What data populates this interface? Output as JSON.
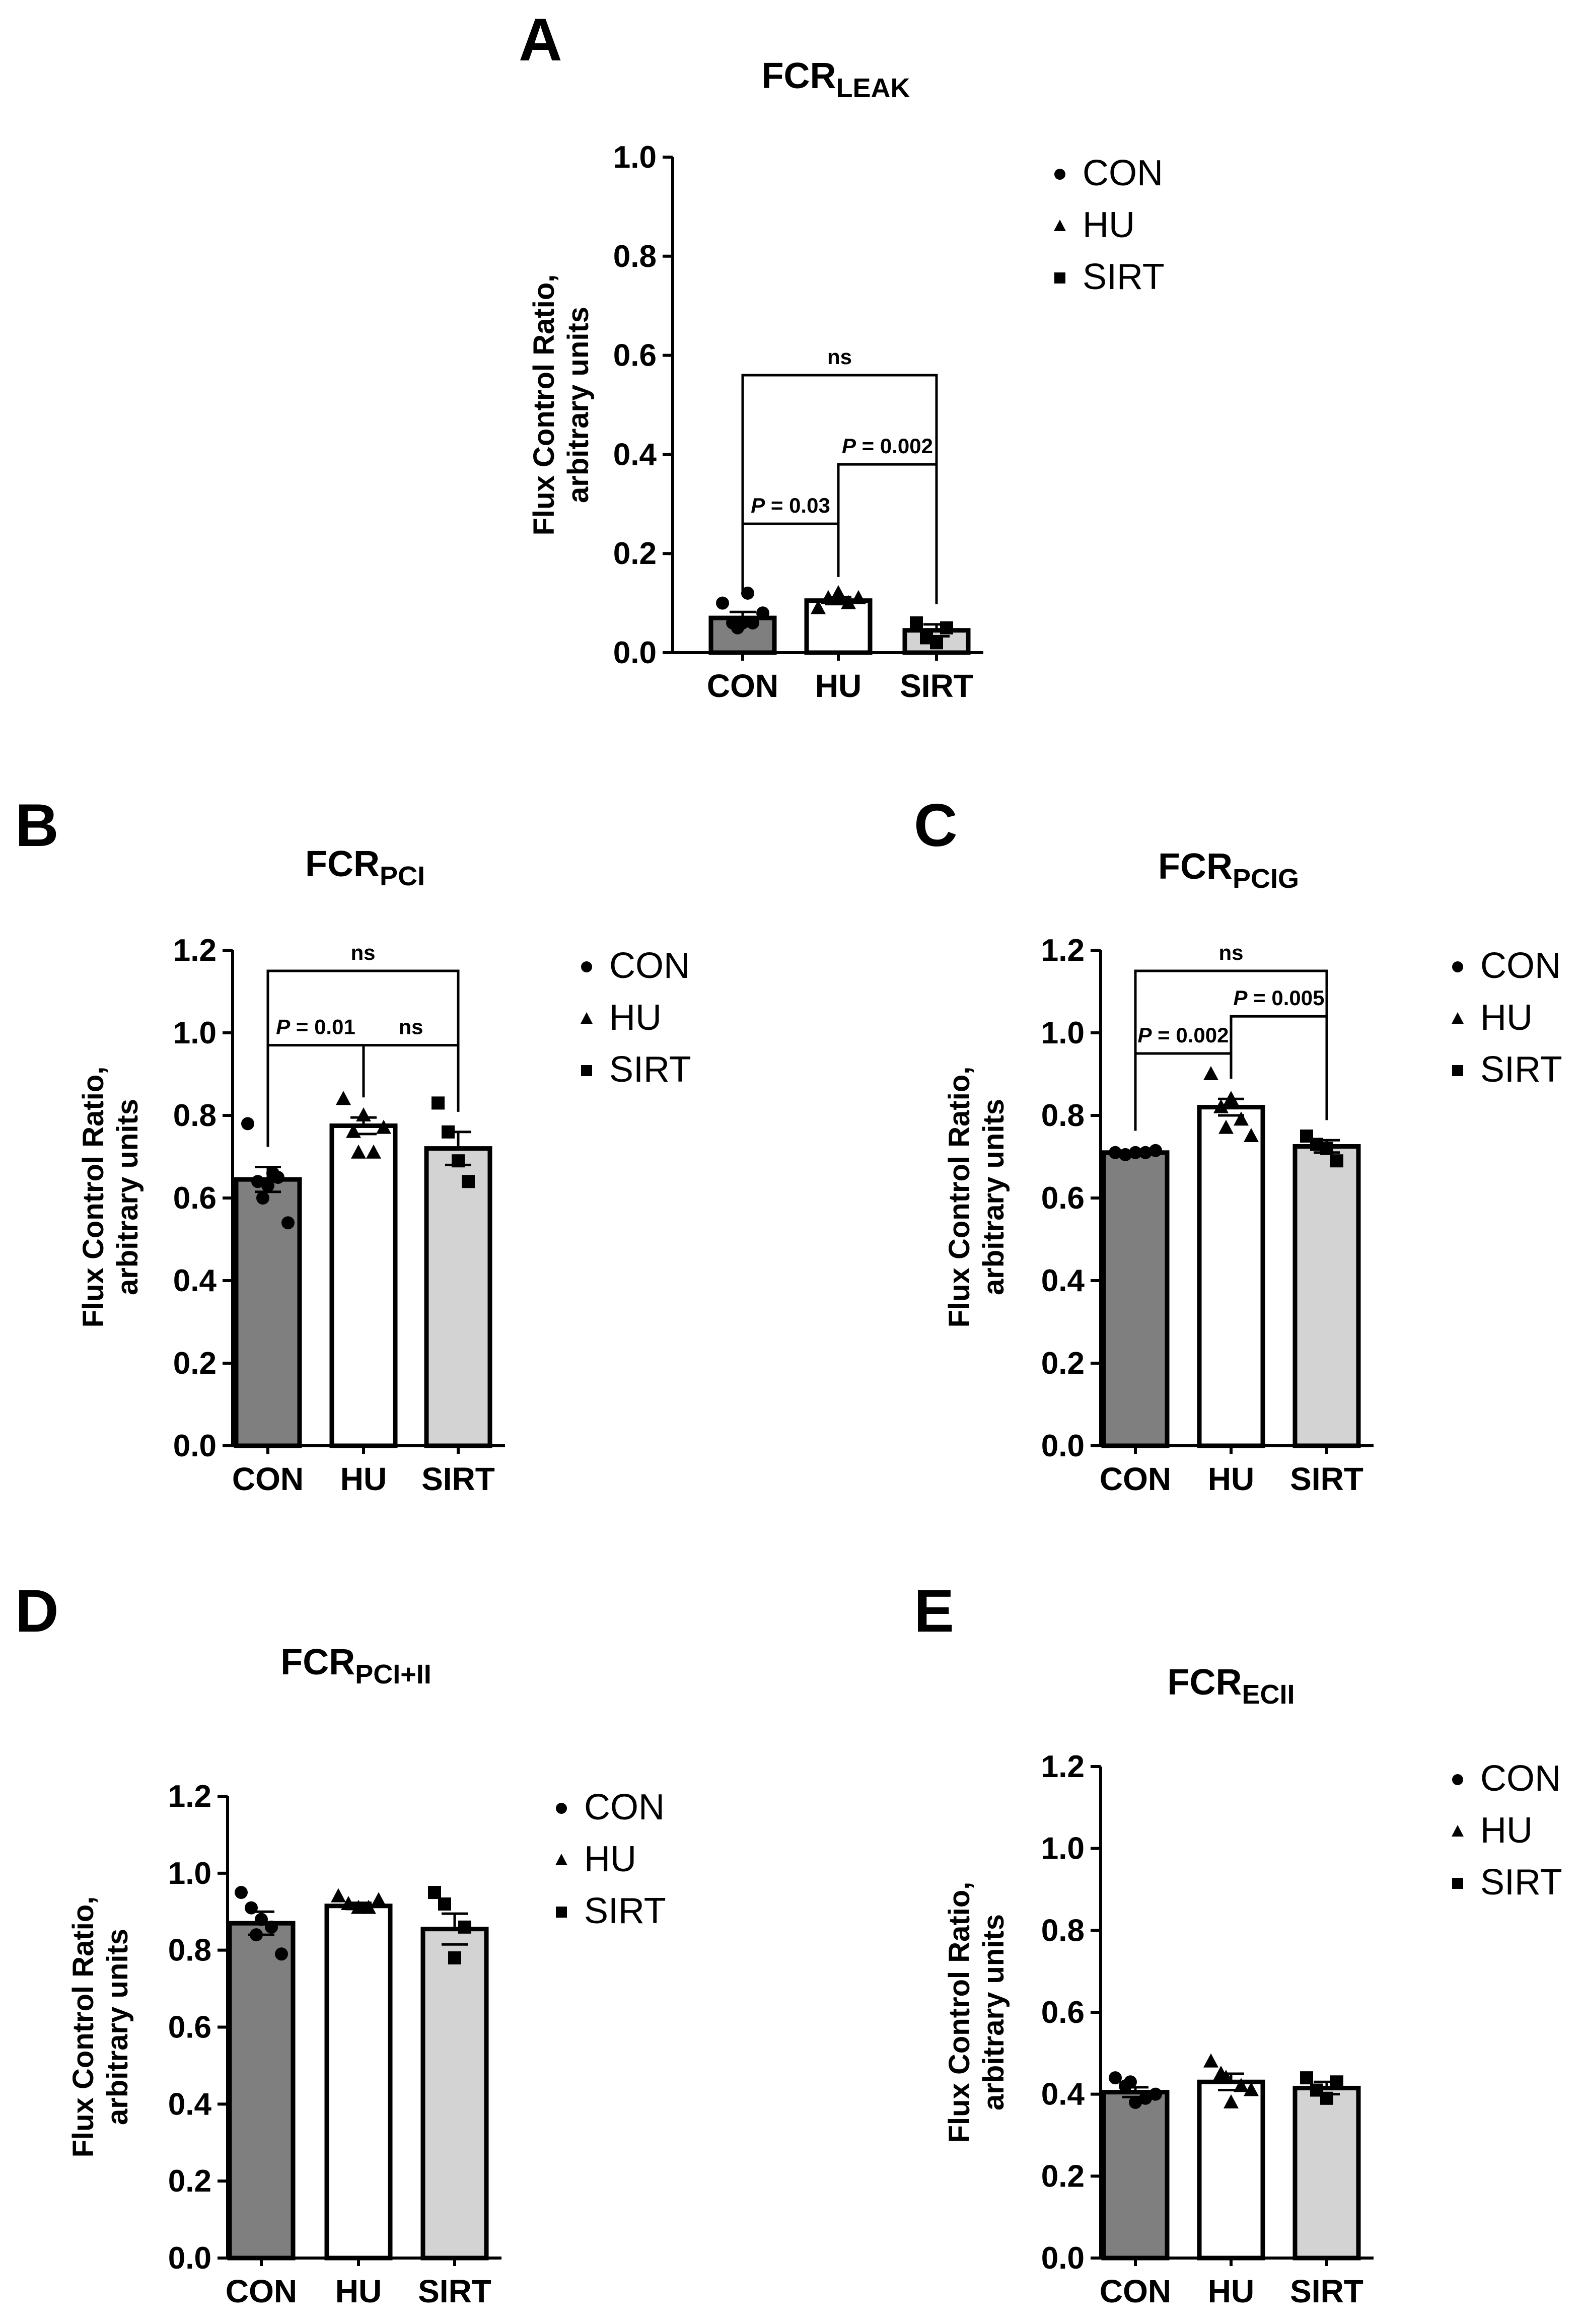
{
  "chart_data": [
    {
      "type": "bar",
      "panel": "A",
      "title": "FCR",
      "title_sub": "LEAK",
      "ylabel": [
        "Flux Control Ratio,",
        "arbitrary units"
      ],
      "categories": [
        "CON",
        "HU",
        "SIRT"
      ],
      "values": [
        0.07,
        0.105,
        0.045
      ],
      "sem": [
        0.012,
        0.007,
        0.012
      ],
      "points": [
        [
          0.1,
          0.06,
          0.06,
          0.06,
          0.08,
          0.05,
          0.12
        ],
        [
          0.09,
          0.11,
          0.12,
          0.1,
          0.11
        ],
        [
          0.06,
          0.03,
          0.02,
          0.05
        ]
      ],
      "colors": [
        "#7f7f7f",
        "#ffffff",
        "#d3d3d3"
      ],
      "markers": [
        "circle",
        "triangle",
        "square"
      ],
      "ylim": [
        0,
        1.0
      ],
      "yticks": [
        "0.0",
        "0.2",
        "0.4",
        "0.6",
        "0.8",
        "1.0"
      ],
      "legend": [
        "CON",
        "HU",
        "SIRT"
      ],
      "legend_position": "right",
      "annotations": [
        {
          "from": 0,
          "to": 2,
          "y": 0.56,
          "label": "ns"
        },
        {
          "from": 1,
          "to": 2,
          "y": 0.38,
          "label_p": "P",
          "label_rest": " = 0.002"
        },
        {
          "from": 0,
          "to": 1,
          "y": 0.26,
          "label_p": "P",
          "label_rest": " = 0.03"
        }
      ]
    },
    {
      "type": "bar",
      "panel": "B",
      "title": "FCR",
      "title_sub": "PCI",
      "ylabel": [
        "Flux Control Ratio,",
        "arbitrary units"
      ],
      "categories": [
        "CON",
        "HU",
        "SIRT"
      ],
      "values": [
        0.645,
        0.775,
        0.72
      ],
      "sem": [
        0.03,
        0.02,
        0.04
      ],
      "points": [
        [
          0.78,
          0.64,
          0.63,
          0.65,
          0.54,
          0.6,
          0.66
        ],
        [
          0.84,
          0.76,
          0.8,
          0.71,
          0.77,
          0.71
        ],
        [
          0.83,
          0.76,
          0.69,
          0.64
        ]
      ],
      "colors": [
        "#7f7f7f",
        "#ffffff",
        "#d3d3d3"
      ],
      "markers": [
        "circle",
        "triangle",
        "square"
      ],
      "ylim": [
        0,
        1.2
      ],
      "yticks": [
        "0.0",
        "0.2",
        "0.4",
        "0.6",
        "0.8",
        "1.0",
        "1.2"
      ],
      "legend": [
        "CON",
        "HU",
        "SIRT"
      ],
      "legend_position": "right",
      "annotations": [
        {
          "from": 0,
          "to": 2,
          "y": 1.15,
          "label": "ns"
        },
        {
          "from": 0,
          "to": 1,
          "y": 0.97,
          "label_p": "P",
          "label_rest": " = 0.01"
        },
        {
          "from": 1,
          "to": 2,
          "y": 0.97,
          "label": "ns"
        }
      ]
    },
    {
      "type": "bar",
      "panel": "C",
      "title": "FCR",
      "title_sub": "PCIG",
      "ylabel": [
        "Flux Control Ratio,",
        "arbitrary units"
      ],
      "categories": [
        "CON",
        "HU",
        "SIRT"
      ],
      "values": [
        0.71,
        0.82,
        0.725
      ],
      "sem": [
        0.004,
        0.02,
        0.015
      ],
      "points": [
        [
          0.71,
          0.705,
          0.71,
          0.71,
          0.715
        ],
        [
          0.9,
          0.82,
          0.84,
          0.79,
          0.75,
          0.77
        ],
        [
          0.75,
          0.73,
          0.72,
          0.69
        ]
      ],
      "colors": [
        "#7f7f7f",
        "#ffffff",
        "#d3d3d3"
      ],
      "markers": [
        "circle",
        "triangle",
        "square"
      ],
      "ylim": [
        0,
        1.2
      ],
      "yticks": [
        "0.0",
        "0.2",
        "0.4",
        "0.6",
        "0.8",
        "1.0",
        "1.2"
      ],
      "legend": [
        "CON",
        "HU",
        "SIRT"
      ],
      "legend_position": "right",
      "annotations": [
        {
          "from": 0,
          "to": 2,
          "y": 1.15,
          "label": "ns"
        },
        {
          "from": 1,
          "to": 2,
          "y": 1.04,
          "label_p": "P",
          "label_rest": " = 0.005"
        },
        {
          "from": 0,
          "to": 1,
          "y": 0.95,
          "label_p": "P",
          "label_rest": " = 0.002"
        }
      ]
    },
    {
      "type": "bar",
      "panel": "D",
      "title": "FCR",
      "title_sub": "PCI+II",
      "ylabel": [
        "Flux Control Ratio,",
        "arbitrary units"
      ],
      "categories": [
        "CON",
        "HU",
        "SIRT"
      ],
      "values": [
        0.87,
        0.915,
        0.855
      ],
      "sem": [
        0.03,
        0.008,
        0.04
      ],
      "points": [
        [
          0.95,
          0.91,
          0.88,
          0.86,
          0.79,
          0.84
        ],
        [
          0.94,
          0.92,
          0.91,
          0.91,
          0.93
        ],
        [
          0.95,
          0.92,
          0.78,
          0.86
        ]
      ],
      "colors": [
        "#7f7f7f",
        "#ffffff",
        "#d3d3d3"
      ],
      "markers": [
        "circle",
        "triangle",
        "square"
      ],
      "ylim": [
        0,
        1.2
      ],
      "yticks": [
        "0.0",
        "0.2",
        "0.4",
        "0.6",
        "0.8",
        "1.0",
        "1.2"
      ],
      "legend": [
        "CON",
        "HU",
        "SIRT"
      ],
      "legend_position": "right",
      "annotations": []
    },
    {
      "type": "bar",
      "panel": "E",
      "title": "FCR",
      "title_sub": "ECII",
      "ylabel": [
        "Flux Control Ratio,",
        "arbitrary units"
      ],
      "categories": [
        "CON",
        "HU",
        "SIRT"
      ],
      "values": [
        0.405,
        0.43,
        0.415
      ],
      "sem": [
        0.012,
        0.02,
        0.015
      ],
      "points": [
        [
          0.44,
          0.42,
          0.38,
          0.39,
          0.4,
          0.43
        ],
        [
          0.48,
          0.45,
          0.38,
          0.42,
          0.41,
          0.44
        ],
        [
          0.44,
          0.41,
          0.39,
          0.43
        ]
      ],
      "colors": [
        "#7f7f7f",
        "#ffffff",
        "#d3d3d3"
      ],
      "markers": [
        "circle",
        "triangle",
        "square"
      ],
      "ylim": [
        0,
        1.2
      ],
      "yticks": [
        "0.0",
        "0.2",
        "0.4",
        "0.6",
        "0.8",
        "1.0",
        "1.2"
      ],
      "legend": [
        "CON",
        "HU",
        "SIRT"
      ],
      "legend_position": "right",
      "annotations": []
    }
  ]
}
